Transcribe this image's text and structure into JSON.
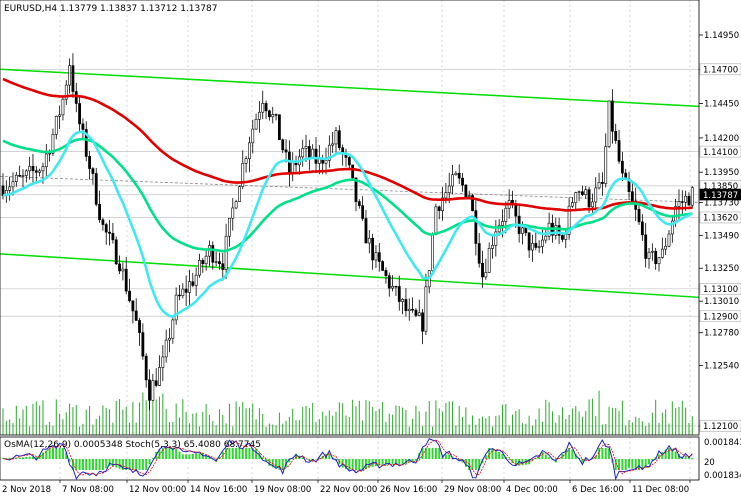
{
  "header": {
    "symbol_title": "EURUSD,H4  1.13779 1.13837 1.13712 1.13787",
    "indicator_title": "OsMA(12,26,9) 0.0005348  Stoch(5,3,3) 65.4080 68.7745"
  },
  "price_axis": {
    "labels": [
      "1.14950",
      "1.14700",
      "1.14450",
      "1.14200",
      "1.13950",
      "1.13730",
      "1.13490",
      "1.13250",
      "1.13010",
      "1.12780",
      "1.12540",
      "1.12100"
    ],
    "tags": [
      {
        "text": "1.14700",
        "bg": "#ffffff",
        "fg": "#000000",
        "border": "#aaaaaa"
      },
      {
        "text": "1.14100",
        "bg": "#ffffff",
        "fg": "#000000",
        "border": "#aaaaaa"
      },
      {
        "text": "1.13850",
        "bg": "#ffffff",
        "fg": "#000000",
        "border": "#aaaaaa"
      },
      {
        "text": "1.13787",
        "bg": "#000000",
        "fg": "#ffffff",
        "border": "#000000"
      },
      {
        "text": "1.13620",
        "bg": "#ffffff",
        "fg": "#000000",
        "border": "#aaaaaa"
      },
      {
        "text": "1.13100",
        "bg": "#ffffff",
        "fg": "#000000",
        "border": "#aaaaaa"
      },
      {
        "text": "1.12900",
        "bg": "#ffffff",
        "fg": "#000000",
        "border": "#aaaaaa"
      },
      {
        "text": "1.12100",
        "bg": "#ffffff",
        "fg": "#000000",
        "border": "#aaaaaa"
      }
    ]
  },
  "indicator_axis": {
    "labels": [
      "0.001841",
      "20",
      "0.001834"
    ]
  },
  "time_axis": {
    "labels": [
      "2 Nov 2018",
      "7 Nov 08:00",
      "12 Nov 00:00",
      "14 Nov 16:00",
      "19 Nov 08:00",
      "22 Nov 00:00",
      "26 Nov 16:00",
      "29 Nov 08:00",
      "4 Dec 00:00",
      "6 Dec 16:00",
      "11 Dec 08:00"
    ]
  },
  "colors": {
    "candle": "#000000",
    "trend_channel": "#00dd00",
    "ema_long": "#e00000",
    "ema_mid": "#00e08a",
    "ema_short": "#40e8f0",
    "dotted_line": "#888888",
    "volume": "#2fa82f",
    "osma": "#2fd62f",
    "stoch_main": "#2020c8",
    "stoch_signal": "#e01010"
  },
  "chart_data": {
    "type": "candlestick",
    "symbol": "EURUSD",
    "timeframe": "H4",
    "last": {
      "open": 1.13779,
      "high": 1.13837,
      "low": 1.13712,
      "close": 1.13787
    },
    "levels": [
      1.147,
      1.141,
      1.1385,
      1.1362,
      1.131,
      1.129,
      1.121
    ],
    "ylim": [
      1.1205,
      1.151
    ],
    "x_start": "2 Nov 2018",
    "x_end": "11 Dec 08:00",
    "indicators": {
      "osma": {
        "params": "12,26,9",
        "value": 0.0005348
      },
      "stoch": {
        "params": "5,3,3",
        "main": 65.408,
        "signal": 68.7745
      }
    }
  }
}
